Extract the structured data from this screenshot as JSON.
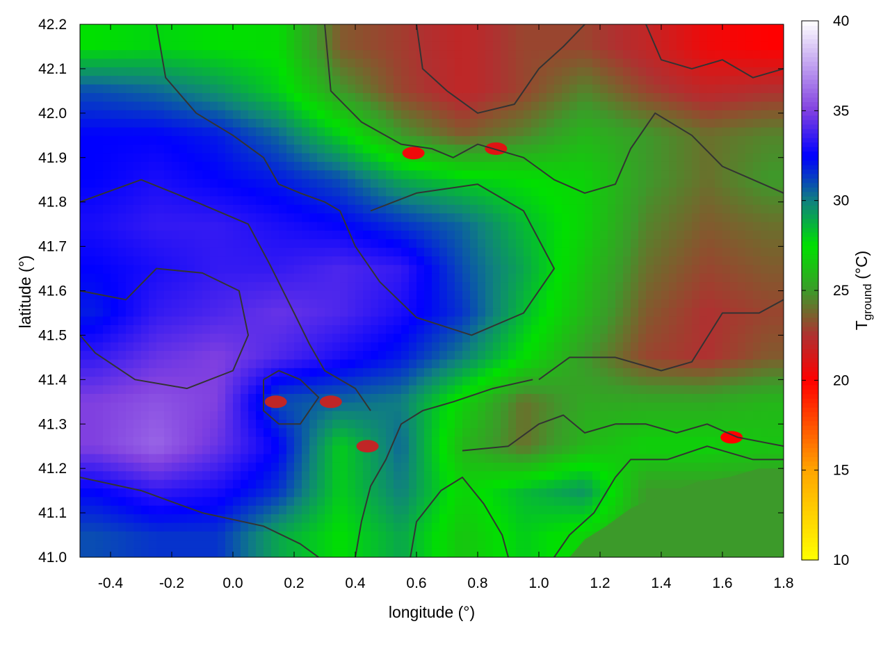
{
  "chart_data": {
    "type": "heatmap",
    "title": "",
    "xlabel": "longitude (°)",
    "ylabel": "latitude (°)",
    "colorbar_label_main": "T",
    "colorbar_label_sub": "ground",
    "colorbar_label_unit": " (°C)",
    "xlim": [
      -0.5,
      1.8
    ],
    "ylim": [
      41.0,
      42.2
    ],
    "clim": [
      10,
      40
    ],
    "x_ticks": [
      -0.4,
      -0.2,
      0.0,
      0.2,
      0.4,
      0.6,
      0.8,
      1.0,
      1.2,
      1.4,
      1.6,
      1.8
    ],
    "x_tick_labels": [
      "-0.4",
      "-0.2",
      "0.0",
      "0.2",
      "0.4",
      "0.6",
      "0.8",
      "1.0",
      "1.2",
      "1.4",
      "1.6",
      "1.8"
    ],
    "y_ticks": [
      41.0,
      41.1,
      41.2,
      41.3,
      41.4,
      41.5,
      41.6,
      41.7,
      41.8,
      41.9,
      42.0,
      42.1,
      42.2
    ],
    "y_tick_labels": [
      "41.0",
      "41.1",
      "41.2",
      "41.3",
      "41.4",
      "41.5",
      "41.6",
      "41.7",
      "41.8",
      "41.9",
      "42.0",
      "42.1",
      "42.2"
    ],
    "colorbar_ticks": [
      10,
      15,
      20,
      25,
      30,
      35,
      40
    ],
    "colorbar_tick_labels": [
      "10",
      "15",
      "20",
      "25",
      "30",
      "35",
      "40"
    ],
    "colormap": [
      {
        "value": 10,
        "color": "#ffff00"
      },
      {
        "value": 15,
        "color": "#ffa500"
      },
      {
        "value": 20,
        "color": "#ff0000"
      },
      {
        "value": 22.5,
        "color": "#b03030"
      },
      {
        "value": 25,
        "color": "#3c9a2a"
      },
      {
        "value": 27.5,
        "color": "#00e000"
      },
      {
        "value": 30,
        "color": "#108080"
      },
      {
        "value": 32.5,
        "color": "#0000ff"
      },
      {
        "value": 35,
        "color": "#8040e0"
      },
      {
        "value": 40,
        "color": "#ffffff"
      }
    ],
    "sea_value": 25.0,
    "temperature_field": {
      "lon": [
        -0.45,
        -0.25,
        -0.05,
        0.15,
        0.35,
        0.55,
        0.75,
        0.95,
        1.15,
        1.35,
        1.55,
        1.75
      ],
      "lat": [
        42.15,
        42.05,
        41.95,
        41.85,
        41.75,
        41.65,
        41.55,
        41.45,
        41.35,
        41.25,
        41.15,
        41.05
      ],
      "values": [
        [
          27.5,
          27.8,
          27.5,
          27.3,
          23.5,
          22.8,
          22.0,
          23.0,
          23.0,
          22.0,
          20.5,
          20.0
        ],
        [
          31.0,
          30.5,
          29.5,
          28.0,
          25.0,
          23.0,
          22.0,
          23.0,
          24.5,
          23.0,
          22.0,
          22.5
        ],
        [
          32.5,
          32.5,
          32.0,
          30.5,
          28.0,
          25.0,
          23.5,
          24.5,
          26.0,
          25.0,
          24.0,
          24.5
        ],
        [
          32.5,
          33.0,
          32.5,
          32.0,
          31.0,
          29.0,
          28.0,
          27.5,
          27.0,
          25.0,
          24.0,
          25.0
        ],
        [
          33.0,
          33.5,
          33.5,
          33.0,
          32.5,
          31.5,
          30.5,
          28.5,
          27.0,
          24.5,
          23.5,
          24.0
        ],
        [
          32.5,
          33.0,
          33.5,
          33.5,
          34.0,
          33.5,
          31.0,
          29.0,
          26.5,
          24.0,
          23.0,
          23.5
        ],
        [
          32.0,
          33.5,
          34.0,
          34.5,
          34.0,
          33.0,
          31.5,
          28.5,
          26.0,
          23.5,
          22.5,
          23.0
        ],
        [
          33.5,
          34.5,
          35.0,
          34.0,
          33.0,
          32.0,
          30.0,
          27.5,
          25.0,
          23.0,
          22.5,
          23.5
        ],
        [
          35.0,
          35.5,
          35.0,
          31.0,
          30.5,
          30.0,
          27.0,
          24.0,
          25.5,
          25.5,
          25.5,
          26.0
        ],
        [
          35.0,
          36.0,
          34.5,
          32.5,
          28.0,
          30.5,
          26.0,
          24.0,
          26.0,
          27.0,
          27.0,
          26.5
        ],
        [
          32.5,
          33.5,
          33.0,
          31.5,
          28.0,
          30.0,
          27.0,
          28.5,
          29.5,
          25.0,
          25.0,
          25.0
        ],
        [
          31.0,
          31.5,
          31.5,
          29.0,
          27.5,
          29.0,
          26.5,
          28.0,
          27.0,
          25.0,
          25.0,
          25.0
        ]
      ]
    },
    "sea_region_polygon": [
      [
        1.1,
        41.0
      ],
      [
        1.8,
        41.0
      ],
      [
        1.8,
        41.2
      ],
      [
        1.72,
        41.2
      ],
      [
        1.62,
        41.18
      ],
      [
        1.52,
        41.17
      ],
      [
        1.4,
        41.14
      ],
      [
        1.3,
        41.11
      ],
      [
        1.22,
        41.07
      ],
      [
        1.15,
        41.04
      ],
      [
        1.1,
        41.0
      ]
    ],
    "hotspots": [
      {
        "lon": 0.14,
        "lat": 41.35,
        "value": 22.0
      },
      {
        "lon": 0.44,
        "lat": 41.25,
        "value": 22.0
      },
      {
        "lon": 0.32,
        "lat": 41.35,
        "value": 22.0
      },
      {
        "lon": 0.59,
        "lat": 41.91,
        "value": 20.5
      },
      {
        "lon": 0.86,
        "lat": 41.92,
        "value": 21.0
      },
      {
        "lon": 1.63,
        "lat": 41.27,
        "value": 20.0
      }
    ],
    "contour_lines": [
      [
        [
          -0.5,
          41.6
        ],
        [
          -0.35,
          41.58
        ],
        [
          -0.25,
          41.65
        ],
        [
          -0.1,
          41.64
        ],
        [
          0.02,
          41.6
        ],
        [
          0.05,
          41.5
        ],
        [
          0.0,
          41.42
        ],
        [
          -0.15,
          41.38
        ],
        [
          -0.32,
          41.4
        ],
        [
          -0.45,
          41.46
        ],
        [
          -0.5,
          41.5
        ]
      ],
      [
        [
          -0.5,
          41.8
        ],
        [
          -0.3,
          41.85
        ],
        [
          -0.12,
          41.8
        ],
        [
          0.05,
          41.75
        ],
        [
          0.12,
          41.66
        ],
        [
          0.2,
          41.55
        ],
        [
          0.25,
          41.48
        ],
        [
          0.3,
          41.42
        ],
        [
          0.4,
          41.38
        ],
        [
          0.45,
          41.33
        ]
      ],
      [
        [
          -0.5,
          41.18
        ],
        [
          -0.3,
          41.15
        ],
        [
          -0.1,
          41.1
        ],
        [
          0.1,
          41.07
        ],
        [
          0.22,
          41.03
        ],
        [
          0.28,
          41.0
        ]
      ],
      [
        [
          -0.25,
          42.2
        ],
        [
          -0.22,
          42.08
        ],
        [
          -0.12,
          42.0
        ],
        [
          0.0,
          41.95
        ],
        [
          0.1,
          41.9
        ],
        [
          0.15,
          41.84
        ],
        [
          0.22,
          41.82
        ],
        [
          0.3,
          41.8
        ],
        [
          0.35,
          41.78
        ],
        [
          0.4,
          41.7
        ],
        [
          0.48,
          41.62
        ],
        [
          0.6,
          41.54
        ],
        [
          0.78,
          41.5
        ],
        [
          0.95,
          41.55
        ],
        [
          1.05,
          41.65
        ],
        [
          0.95,
          41.78
        ],
        [
          0.8,
          41.84
        ],
        [
          0.6,
          41.82
        ],
        [
          0.45,
          41.78
        ]
      ],
      [
        [
          0.3,
          42.2
        ],
        [
          0.32,
          42.05
        ],
        [
          0.42,
          41.98
        ],
        [
          0.55,
          41.93
        ],
        [
          0.65,
          41.92
        ],
        [
          0.72,
          41.9
        ],
        [
          0.8,
          41.93
        ],
        [
          0.95,
          41.9
        ],
        [
          1.05,
          41.85
        ],
        [
          1.15,
          41.82
        ],
        [
          1.25,
          41.84
        ],
        [
          1.3,
          41.92
        ],
        [
          1.38,
          42.0
        ],
        [
          1.5,
          41.95
        ],
        [
          1.6,
          41.88
        ],
        [
          1.7,
          41.85
        ],
        [
          1.8,
          41.82
        ]
      ],
      [
        [
          0.6,
          42.2
        ],
        [
          0.62,
          42.1
        ],
        [
          0.7,
          42.05
        ],
        [
          0.8,
          42.0
        ],
        [
          0.92,
          42.02
        ],
        [
          1.0,
          42.1
        ],
        [
          1.08,
          42.15
        ],
        [
          1.15,
          42.2
        ]
      ],
      [
        [
          1.0,
          41.4
        ],
        [
          1.1,
          41.45
        ],
        [
          1.25,
          41.45
        ],
        [
          1.4,
          41.42
        ],
        [
          1.5,
          41.44
        ],
        [
          1.6,
          41.55
        ],
        [
          1.72,
          41.55
        ],
        [
          1.8,
          41.58
        ]
      ],
      [
        [
          0.75,
          41.24
        ],
        [
          0.9,
          41.25
        ],
        [
          1.0,
          41.3
        ],
        [
          1.08,
          41.32
        ],
        [
          1.15,
          41.28
        ],
        [
          1.25,
          41.3
        ],
        [
          1.35,
          41.3
        ],
        [
          1.45,
          41.28
        ],
        [
          1.55,
          41.3
        ],
        [
          1.65,
          41.27
        ],
        [
          1.8,
          41.25
        ]
      ],
      [
        [
          0.58,
          41.0
        ],
        [
          0.6,
          41.08
        ],
        [
          0.68,
          41.15
        ],
        [
          0.75,
          41.18
        ],
        [
          0.82,
          41.12
        ],
        [
          0.88,
          41.05
        ],
        [
          0.9,
          41.0
        ]
      ],
      [
        [
          0.4,
          41.0
        ],
        [
          0.42,
          41.08
        ],
        [
          0.45,
          41.16
        ],
        [
          0.5,
          41.22
        ],
        [
          0.55,
          41.3
        ],
        [
          0.62,
          41.33
        ],
        [
          0.72,
          41.35
        ],
        [
          0.85,
          41.38
        ],
        [
          0.98,
          41.4
        ]
      ],
      [
        [
          1.05,
          41.0
        ],
        [
          1.1,
          41.05
        ],
        [
          1.18,
          41.1
        ],
        [
          1.25,
          41.18
        ],
        [
          1.3,
          41.22
        ],
        [
          1.42,
          41.22
        ],
        [
          1.55,
          41.25
        ],
        [
          1.7,
          41.22
        ],
        [
          1.8,
          41.22
        ]
      ],
      [
        [
          0.1,
          41.4
        ],
        [
          0.15,
          41.42
        ],
        [
          0.22,
          41.4
        ],
        [
          0.28,
          41.36
        ],
        [
          0.22,
          41.3
        ],
        [
          0.15,
          41.3
        ],
        [
          0.1,
          41.33
        ],
        [
          0.1,
          41.4
        ]
      ],
      [
        [
          1.35,
          42.2
        ],
        [
          1.4,
          42.12
        ],
        [
          1.5,
          42.1
        ],
        [
          1.6,
          42.12
        ],
        [
          1.7,
          42.08
        ],
        [
          1.8,
          42.1
        ]
      ]
    ]
  }
}
